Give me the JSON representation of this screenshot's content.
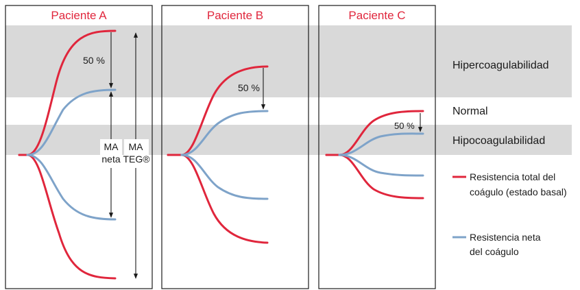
{
  "panels": {
    "a_title": "Paciente A",
    "b_title": "Paciente B",
    "c_title": "Paciente C"
  },
  "annotations": {
    "a_percent": "50 %",
    "b_percent": "50 %",
    "c_percent": "50 %",
    "ma_neta_line1": "MA",
    "ma_neta_line2": "neta",
    "ma_teg_line1": "MA",
    "ma_teg_line2": "TEG®"
  },
  "zones": {
    "hyper": "Hipercoagulabilidad",
    "normal": "Normal",
    "hypo": "Hipocoagulabilidad"
  },
  "legend": {
    "total_line1": "Resistencia total del",
    "total_line2": "coágulo (estado basal)",
    "net_line1": "Resistencia neta",
    "net_line2": "del coágulo"
  },
  "colors": {
    "total": "#e0263c",
    "net": "#7ea3c9",
    "band": "#d9d9d9"
  }
}
